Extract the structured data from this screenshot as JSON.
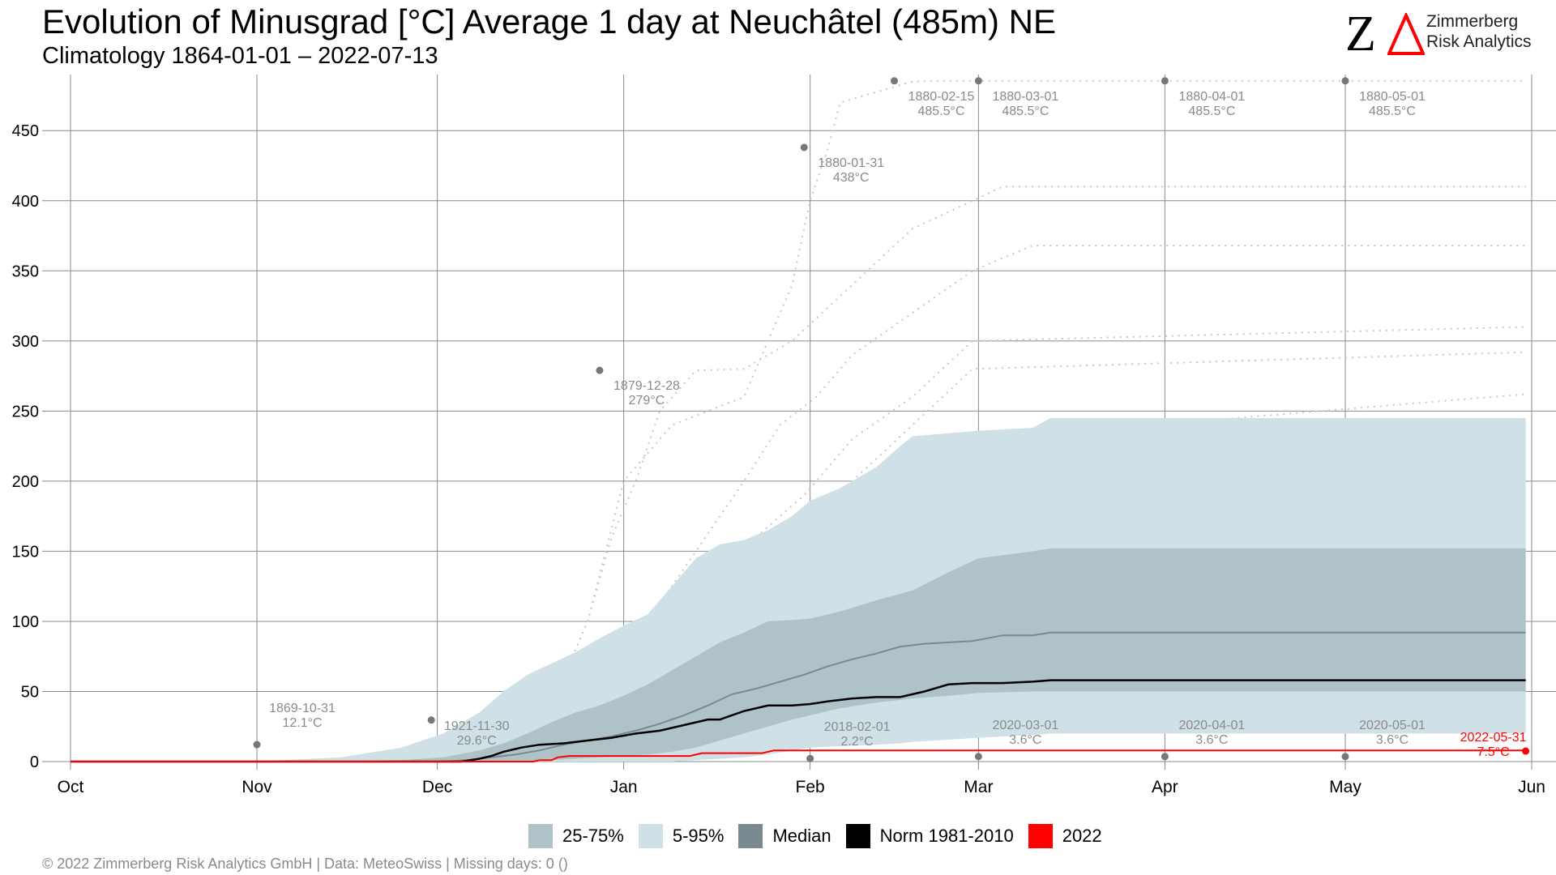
{
  "header": {
    "title": "Evolution of Minusgrad [°C] Average 1 day at Neuchâtel (485m) NE",
    "subtitle": "Climatology 1864-01-01 – 2022-07-13"
  },
  "logo": {
    "mark": "Z",
    "line1": "Zimmerberg",
    "line2": "Risk Analytics"
  },
  "footer": {
    "text": "©  2022 Zimmerberg Risk Analytics GmbH | Data: MeteoSwiss | Missing days: 0 ()"
  },
  "colors": {
    "band_25_75": "#afc2c8",
    "band_5_95": "#cfe1e7",
    "median": "#78898f",
    "norm": "#000000",
    "year_2022": "#ff0000",
    "grid": "#8a8a8a",
    "annotation": "#8a8a8a",
    "dotted_years": "#c8c8c8"
  },
  "legend": [
    {
      "label": "25-75%",
      "color": "#afc2c8"
    },
    {
      "label": "5-95%",
      "color": "#cfe1e7"
    },
    {
      "label": "Median",
      "color": "#78898f"
    },
    {
      "label": "Norm 1981-2010",
      "color": "#000000"
    },
    {
      "label": "2022",
      "color": "#ff0000"
    }
  ],
  "chart_data": {
    "type": "area",
    "title": "Evolution of Minusgrad [°C] Average 1 day at Neuchâtel (485m) NE",
    "xlabel": "",
    "ylabel": "",
    "x_unit": "days since Oct 1",
    "xlim": [
      0,
      243
    ],
    "ylim": [
      0,
      490
    ],
    "yticks": [
      0,
      50,
      100,
      150,
      200,
      250,
      300,
      350,
      400,
      450
    ],
    "xticks": [
      {
        "label": "Oct",
        "day": 0
      },
      {
        "label": "Nov",
        "day": 31
      },
      {
        "label": "Dec",
        "day": 61
      },
      {
        "label": "Jan",
        "day": 92
      },
      {
        "label": "Feb",
        "day": 123
      },
      {
        "label": "Mar",
        "day": 151
      },
      {
        "label": "Apr",
        "day": 182
      },
      {
        "label": "May",
        "day": 212
      },
      {
        "label": "Jun",
        "day": 243
      }
    ],
    "grid": true,
    "legend_position": "bottom",
    "band_5_95": {
      "x": [
        0,
        30,
        45,
        55,
        62,
        68,
        72,
        76,
        80,
        84,
        88,
        92,
        96,
        100,
        104,
        108,
        112,
        116,
        120,
        123,
        128,
        134,
        138,
        140,
        151,
        160,
        163,
        180,
        200,
        220,
        242
      ],
      "low": [
        0,
        0,
        0,
        0,
        0,
        0,
        0,
        0,
        0,
        0,
        0,
        0,
        0,
        0,
        1,
        2,
        3,
        5,
        8,
        10,
        11,
        12,
        13,
        14,
        17,
        19,
        20,
        20,
        20,
        20,
        20
      ],
      "high": [
        0,
        0,
        3,
        10,
        20,
        35,
        50,
        62,
        70,
        78,
        88,
        97,
        105,
        125,
        145,
        155,
        158,
        165,
        175,
        186,
        195,
        210,
        225,
        232,
        236,
        238,
        245,
        245,
        245,
        245,
        245
      ]
    },
    "band_25_75": {
      "x": [
        0,
        45,
        55,
        62,
        68,
        72,
        76,
        80,
        84,
        88,
        92,
        96,
        100,
        104,
        108,
        112,
        116,
        120,
        123,
        128,
        134,
        140,
        146,
        151,
        160,
        163,
        180,
        200,
        220,
        242
      ],
      "low": [
        0,
        0,
        0,
        0,
        0,
        0,
        0,
        1,
        2,
        3,
        4,
        5,
        7,
        10,
        15,
        20,
        25,
        30,
        33,
        38,
        42,
        45,
        47,
        49,
        50,
        50,
        50,
        50,
        50,
        50
      ],
      "high": [
        0,
        0,
        1,
        3,
        8,
        13,
        20,
        28,
        35,
        40,
        47,
        55,
        65,
        75,
        85,
        92,
        100,
        101,
        102,
        107,
        115,
        122,
        135,
        145,
        150,
        152,
        152,
        152,
        152,
        152
      ]
    },
    "median": {
      "x": [
        0,
        62,
        66,
        70,
        74,
        78,
        82,
        86,
        90,
        94,
        98,
        102,
        106,
        110,
        114,
        118,
        122,
        126,
        130,
        134,
        138,
        142,
        146,
        150,
        155,
        160,
        163,
        180,
        200,
        220,
        242
      ],
      "values": [
        0,
        0,
        1,
        3,
        5,
        8,
        12,
        15,
        18,
        22,
        27,
        33,
        40,
        48,
        52,
        57,
        62,
        68,
        73,
        77,
        82,
        84,
        85,
        86,
        90,
        90,
        92,
        92,
        92,
        92,
        92
      ]
    },
    "norm_1981_2010": {
      "x": [
        0,
        65,
        68,
        70,
        72,
        75,
        78,
        82,
        86,
        90,
        94,
        98,
        102,
        106,
        108,
        112,
        116,
        120,
        123,
        126,
        130,
        134,
        138,
        142,
        146,
        150,
        155,
        160,
        163,
        180,
        200,
        220,
        242
      ],
      "values": [
        0,
        0,
        2,
        4,
        7,
        10,
        12,
        13,
        15,
        17,
        20,
        22,
        26,
        30,
        30,
        36,
        40,
        40,
        41,
        43,
        45,
        46,
        46,
        50,
        55,
        56,
        56,
        57,
        58,
        58,
        58,
        58,
        58
      ]
    },
    "series_2022": {
      "x": [
        0,
        77,
        78,
        80,
        81,
        83,
        103,
        105,
        115,
        116,
        117,
        242
      ],
      "values": [
        0,
        0,
        1,
        1,
        3,
        4,
        4,
        6,
        6,
        7,
        8,
        8
      ]
    },
    "dotted_years": [
      {
        "x": [
          0,
          76,
          86,
          92,
          100,
          112,
          116,
          120,
          123,
          126,
          128,
          140,
          145,
          150,
          242
        ],
        "values": [
          0,
          0,
          100,
          200,
          240,
          260,
          300,
          340,
          400,
          438,
          470,
          485,
          485.5,
          485.5,
          485.5
        ]
      },
      {
        "x": [
          0,
          76,
          82,
          86,
          90,
          94,
          98,
          104,
          112,
          120,
          130,
          140,
          150,
          155,
          242
        ],
        "values": [
          0,
          0,
          60,
          100,
          160,
          200,
          250,
          279,
          280,
          300,
          340,
          380,
          400,
          410,
          410
        ]
      },
      {
        "x": [
          0,
          80,
          88,
          96,
          104,
          112,
          118,
          124,
          130,
          140,
          150,
          160,
          242
        ],
        "values": [
          0,
          0,
          60,
          100,
          150,
          200,
          240,
          260,
          290,
          320,
          350,
          368,
          368
        ]
      },
      {
        "x": [
          0,
          82,
          90,
          98,
          106,
          114,
          122,
          130,
          140,
          150,
          242
        ],
        "values": [
          0,
          0,
          50,
          100,
          130,
          160,
          190,
          230,
          260,
          300,
          310
        ]
      },
      {
        "x": [
          0,
          84,
          92,
          100,
          110,
          120,
          130,
          140,
          150,
          242
        ],
        "values": [
          0,
          0,
          40,
          90,
          130,
          170,
          200,
          240,
          280,
          292
        ]
      },
      {
        "x": [
          0,
          86,
          96,
          106,
          116,
          126,
          136,
          146,
          151,
          242
        ],
        "values": [
          0,
          0,
          50,
          90,
          120,
          150,
          180,
          200,
          230,
          262
        ]
      },
      {
        "x": [
          0,
          88,
          98,
          108,
          118,
          128,
          138,
          148,
          242
        ],
        "values": [
          0,
          0,
          40,
          80,
          110,
          130,
          150,
          170,
          180
        ]
      }
    ],
    "annotations": [
      {
        "text": "1869-10-31",
        "value_text": "12.1°C",
        "x": 31,
        "y": 12.1,
        "color": "grey"
      },
      {
        "text": "1921-11-30",
        "value_text": "29.6°C",
        "x": 60,
        "y": 29.6,
        "color": "grey"
      },
      {
        "text": "1879-12-28",
        "value_text": "279°C",
        "x": 88,
        "y": 279,
        "color": "grey"
      },
      {
        "text": "1880-01-31",
        "value_text": "438°C",
        "x": 122,
        "y": 438,
        "color": "grey"
      },
      {
        "text": "1880-02-15",
        "value_text": "485.5°C",
        "x": 137,
        "y": 485.5,
        "color": "grey"
      },
      {
        "text": "1880-03-01",
        "value_text": "485.5°C",
        "x": 151,
        "y": 485.5,
        "color": "grey"
      },
      {
        "text": "1880-04-01",
        "value_text": "485.5°C",
        "x": 182,
        "y": 485.5,
        "color": "grey"
      },
      {
        "text": "1880-05-01",
        "value_text": "485.5°C",
        "x": 212,
        "y": 485.5,
        "color": "grey"
      },
      {
        "text": "2018-02-01",
        "value_text": "2.2°C",
        "x": 123,
        "y": 2.2,
        "color": "grey"
      },
      {
        "text": "2020-03-01",
        "value_text": "3.6°C",
        "x": 151,
        "y": 3.6,
        "color": "grey"
      },
      {
        "text": "2020-04-01",
        "value_text": "3.6°C",
        "x": 182,
        "y": 3.6,
        "color": "grey"
      },
      {
        "text": "2020-05-01",
        "value_text": "3.6°C",
        "x": 212,
        "y": 3.6,
        "color": "grey"
      },
      {
        "text": "2022-05-31",
        "value_text": "7.5°C",
        "x": 242,
        "y": 7.5,
        "color": "red"
      }
    ]
  }
}
